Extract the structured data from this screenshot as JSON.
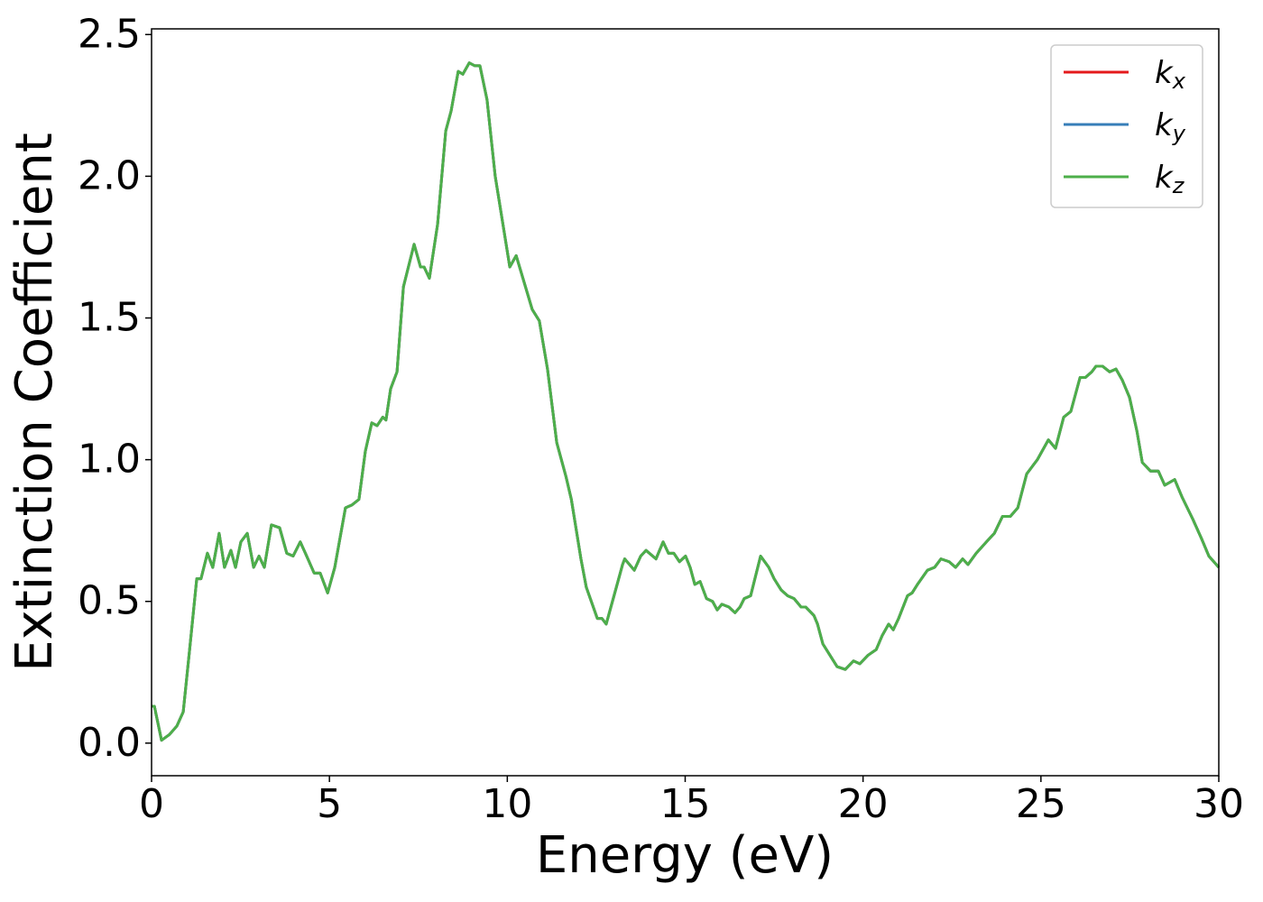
{
  "chart_data": {
    "type": "line",
    "xlabel": "Energy (eV)",
    "ylabel": "Extinction Coefficient",
    "xlim": [
      0,
      30
    ],
    "ylim": [
      -0.115,
      2.52
    ],
    "xticks": [
      0,
      5,
      10,
      15,
      20,
      25,
      30
    ],
    "yticks": [
      {
        "value": 0,
        "label": "0.0"
      },
      0.5,
      {
        "value": 1,
        "label": "1.0"
      },
      1.5,
      {
        "value": 2,
        "label": "2.0"
      },
      2.5
    ],
    "legend": "upper right",
    "grid": false,
    "x": [
      0,
      0.08,
      0.28,
      0.5,
      0.71,
      0.89,
      1.07,
      1.27,
      1.39,
      1.57,
      1.72,
      1.9,
      2.05,
      2.23,
      2.36,
      2.51,
      2.69,
      2.87,
      3.02,
      3.17,
      3.37,
      3.6,
      3.8,
      3.98,
      4.18,
      4.36,
      4.57,
      4.74,
      4.95,
      5.15,
      5.45,
      5.63,
      5.83,
      6.01,
      6.19,
      6.34,
      6.5,
      6.59,
      6.72,
      6.9,
      7.08,
      7.2,
      7.38,
      7.56,
      7.66,
      7.81,
      8.04,
      8.27,
      8.42,
      8.62,
      8.75,
      8.93,
      9.08,
      9.23,
      9.43,
      9.66,
      10.07,
      10.25,
      10.7,
      10.9,
      11.13,
      11.39,
      11.65,
      11.8,
      12.07,
      12.22,
      12.53,
      12.66,
      12.78,
      13.0,
      13.24,
      13.3,
      13.57,
      13.75,
      13.9,
      14.18,
      14.38,
      14.53,
      14.68,
      14.84,
      15.01,
      15.14,
      15.27,
      15.42,
      15.6,
      15.77,
      15.9,
      16.03,
      16.23,
      16.4,
      16.54,
      16.66,
      16.84,
      17.12,
      17.35,
      17.5,
      17.7,
      17.88,
      18.06,
      18.26,
      18.39,
      18.62,
      18.72,
      18.87,
      19.07,
      19.27,
      19.5,
      19.73,
      19.91,
      20.14,
      20.37,
      20.54,
      20.72,
      20.85,
      21.0,
      21.25,
      21.38,
      21.53,
      21.81,
      22.01,
      22.19,
      22.42,
      22.6,
      22.8,
      22.95,
      23.18,
      23.54,
      23.69,
      23.92,
      24.14,
      24.35,
      24.6,
      24.9,
      25.21,
      25.41,
      25.64,
      25.84,
      26.1,
      26.25,
      26.43,
      26.55,
      26.73,
      26.93,
      27.11,
      27.29,
      27.49,
      27.7,
      27.85,
      28.08,
      28.3,
      28.48,
      28.76,
      28.96,
      29.27,
      29.52,
      29.72,
      30
    ],
    "series": [
      {
        "name": "kx",
        "color": "#e41a1c",
        "values": [
          0.13,
          0.13,
          0.01,
          0.03,
          0.06,
          0.11,
          0.33,
          0.58,
          0.58,
          0.67,
          0.62,
          0.74,
          0.62,
          0.68,
          0.62,
          0.71,
          0.74,
          0.62,
          0.66,
          0.62,
          0.77,
          0.76,
          0.67,
          0.66,
          0.71,
          0.66,
          0.6,
          0.6,
          0.53,
          0.62,
          0.83,
          0.84,
          0.86,
          1.03,
          1.13,
          1.12,
          1.15,
          1.14,
          1.25,
          1.31,
          1.61,
          1.67,
          1.76,
          1.68,
          1.68,
          1.64,
          1.83,
          2.16,
          2.23,
          2.37,
          2.36,
          2.4,
          2.39,
          2.39,
          2.27,
          2.0,
          1.68,
          1.72,
          1.53,
          1.49,
          1.32,
          1.06,
          0.94,
          0.86,
          0.65,
          0.55,
          0.44,
          0.44,
          0.42,
          0.52,
          0.63,
          0.65,
          0.61,
          0.66,
          0.68,
          0.65,
          0.71,
          0.67,
          0.67,
          0.64,
          0.66,
          0.62,
          0.56,
          0.57,
          0.51,
          0.5,
          0.47,
          0.49,
          0.48,
          0.46,
          0.48,
          0.51,
          0.52,
          0.66,
          0.62,
          0.58,
          0.54,
          0.52,
          0.51,
          0.48,
          0.48,
          0.45,
          0.42,
          0.35,
          0.31,
          0.27,
          0.26,
          0.29,
          0.28,
          0.31,
          0.33,
          0.38,
          0.42,
          0.4,
          0.44,
          0.52,
          0.53,
          0.56,
          0.61,
          0.62,
          0.65,
          0.64,
          0.62,
          0.65,
          0.63,
          0.67,
          0.72,
          0.74,
          0.8,
          0.8,
          0.83,
          0.95,
          1.0,
          1.07,
          1.04,
          1.15,
          1.17,
          1.29,
          1.29,
          1.31,
          1.33,
          1.33,
          1.31,
          1.32,
          1.28,
          1.22,
          1.1,
          0.99,
          0.96,
          0.96,
          0.91,
          0.93,
          0.87,
          0.79,
          0.72,
          0.66,
          0.62
        ]
      },
      {
        "name": "ky",
        "color": "#377eb8",
        "values": [
          0.13,
          0.13,
          0.01,
          0.03,
          0.06,
          0.11,
          0.33,
          0.58,
          0.58,
          0.67,
          0.62,
          0.74,
          0.62,
          0.68,
          0.62,
          0.71,
          0.74,
          0.62,
          0.66,
          0.62,
          0.77,
          0.76,
          0.67,
          0.66,
          0.71,
          0.66,
          0.6,
          0.6,
          0.53,
          0.62,
          0.83,
          0.84,
          0.86,
          1.03,
          1.13,
          1.12,
          1.15,
          1.14,
          1.25,
          1.31,
          1.61,
          1.67,
          1.76,
          1.68,
          1.68,
          1.64,
          1.83,
          2.16,
          2.23,
          2.37,
          2.36,
          2.4,
          2.39,
          2.39,
          2.27,
          2.0,
          1.68,
          1.72,
          1.53,
          1.49,
          1.32,
          1.06,
          0.94,
          0.86,
          0.65,
          0.55,
          0.44,
          0.44,
          0.42,
          0.52,
          0.63,
          0.65,
          0.61,
          0.66,
          0.68,
          0.65,
          0.71,
          0.67,
          0.67,
          0.64,
          0.66,
          0.62,
          0.56,
          0.57,
          0.51,
          0.5,
          0.47,
          0.49,
          0.48,
          0.46,
          0.48,
          0.51,
          0.52,
          0.66,
          0.62,
          0.58,
          0.54,
          0.52,
          0.51,
          0.48,
          0.48,
          0.45,
          0.42,
          0.35,
          0.31,
          0.27,
          0.26,
          0.29,
          0.28,
          0.31,
          0.33,
          0.38,
          0.42,
          0.4,
          0.44,
          0.52,
          0.53,
          0.56,
          0.61,
          0.62,
          0.65,
          0.64,
          0.62,
          0.65,
          0.63,
          0.67,
          0.72,
          0.74,
          0.8,
          0.8,
          0.83,
          0.95,
          1.0,
          1.07,
          1.04,
          1.15,
          1.17,
          1.29,
          1.29,
          1.31,
          1.33,
          1.33,
          1.31,
          1.32,
          1.28,
          1.22,
          1.1,
          0.99,
          0.96,
          0.96,
          0.91,
          0.93,
          0.87,
          0.79,
          0.72,
          0.66,
          0.62
        ]
      },
      {
        "name": "kz",
        "color": "#4daf4a",
        "values": [
          0.13,
          0.13,
          0.01,
          0.03,
          0.06,
          0.11,
          0.33,
          0.58,
          0.58,
          0.67,
          0.62,
          0.74,
          0.62,
          0.68,
          0.62,
          0.71,
          0.74,
          0.62,
          0.66,
          0.62,
          0.77,
          0.76,
          0.67,
          0.66,
          0.71,
          0.66,
          0.6,
          0.6,
          0.53,
          0.62,
          0.83,
          0.84,
          0.86,
          1.03,
          1.13,
          1.12,
          1.15,
          1.14,
          1.25,
          1.31,
          1.61,
          1.67,
          1.76,
          1.68,
          1.68,
          1.64,
          1.83,
          2.16,
          2.23,
          2.37,
          2.36,
          2.4,
          2.39,
          2.39,
          2.27,
          2.0,
          1.68,
          1.72,
          1.53,
          1.49,
          1.32,
          1.06,
          0.94,
          0.86,
          0.65,
          0.55,
          0.44,
          0.44,
          0.42,
          0.52,
          0.63,
          0.65,
          0.61,
          0.66,
          0.68,
          0.65,
          0.71,
          0.67,
          0.67,
          0.64,
          0.66,
          0.62,
          0.56,
          0.57,
          0.51,
          0.5,
          0.47,
          0.49,
          0.48,
          0.46,
          0.48,
          0.51,
          0.52,
          0.66,
          0.62,
          0.58,
          0.54,
          0.52,
          0.51,
          0.48,
          0.48,
          0.45,
          0.42,
          0.35,
          0.31,
          0.27,
          0.26,
          0.29,
          0.28,
          0.31,
          0.33,
          0.38,
          0.42,
          0.4,
          0.44,
          0.52,
          0.53,
          0.56,
          0.61,
          0.62,
          0.65,
          0.64,
          0.62,
          0.65,
          0.63,
          0.67,
          0.72,
          0.74,
          0.8,
          0.8,
          0.83,
          0.95,
          1.0,
          1.07,
          1.04,
          1.15,
          1.17,
          1.29,
          1.29,
          1.31,
          1.33,
          1.33,
          1.31,
          1.32,
          1.28,
          1.22,
          1.1,
          0.99,
          0.96,
          0.96,
          0.91,
          0.93,
          0.87,
          0.79,
          0.72,
          0.66,
          0.62
        ]
      }
    ]
  }
}
